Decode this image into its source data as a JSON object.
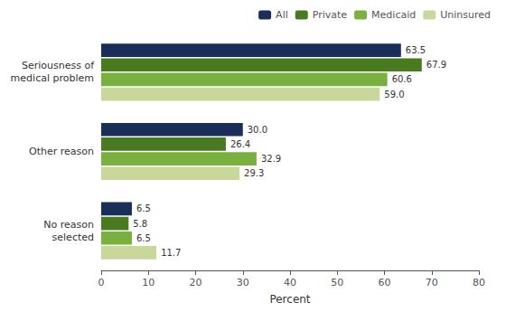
{
  "chart_data": {
    "type": "bar",
    "orientation": "horizontal",
    "categories": [
      "Seriousness of\nmedical problem",
      "Other reason",
      "No reason\nselected"
    ],
    "series": [
      {
        "name": "All",
        "color": "#1a2e5a",
        "values": [
          63.5,
          30.0,
          6.5
        ],
        "value_labels": [
          "63.5",
          "30.0",
          "6.5"
        ]
      },
      {
        "name": "Private",
        "color": "#4a7a20",
        "values": [
          67.9,
          26.4,
          5.8
        ],
        "value_labels": [
          "67.9",
          "26.4",
          "5.8"
        ]
      },
      {
        "name": "Medicaid",
        "color": "#7ab040",
        "values": [
          60.6,
          32.9,
          6.5
        ],
        "value_labels": [
          "60.6",
          "32.9",
          "6.5"
        ]
      },
      {
        "name": "Uninsured",
        "color": "#c8d89a",
        "values": [
          59.0,
          29.3,
          11.7
        ],
        "value_labels": [
          "59.0",
          "29.3",
          "11.7"
        ]
      }
    ],
    "xlabel": "Percent",
    "xlim": [
      0,
      80
    ],
    "xticks": [
      0,
      10,
      20,
      30,
      40,
      50,
      60,
      70,
      80
    ],
    "data_labels": true,
    "legend": "upper right",
    "grid": false
  }
}
